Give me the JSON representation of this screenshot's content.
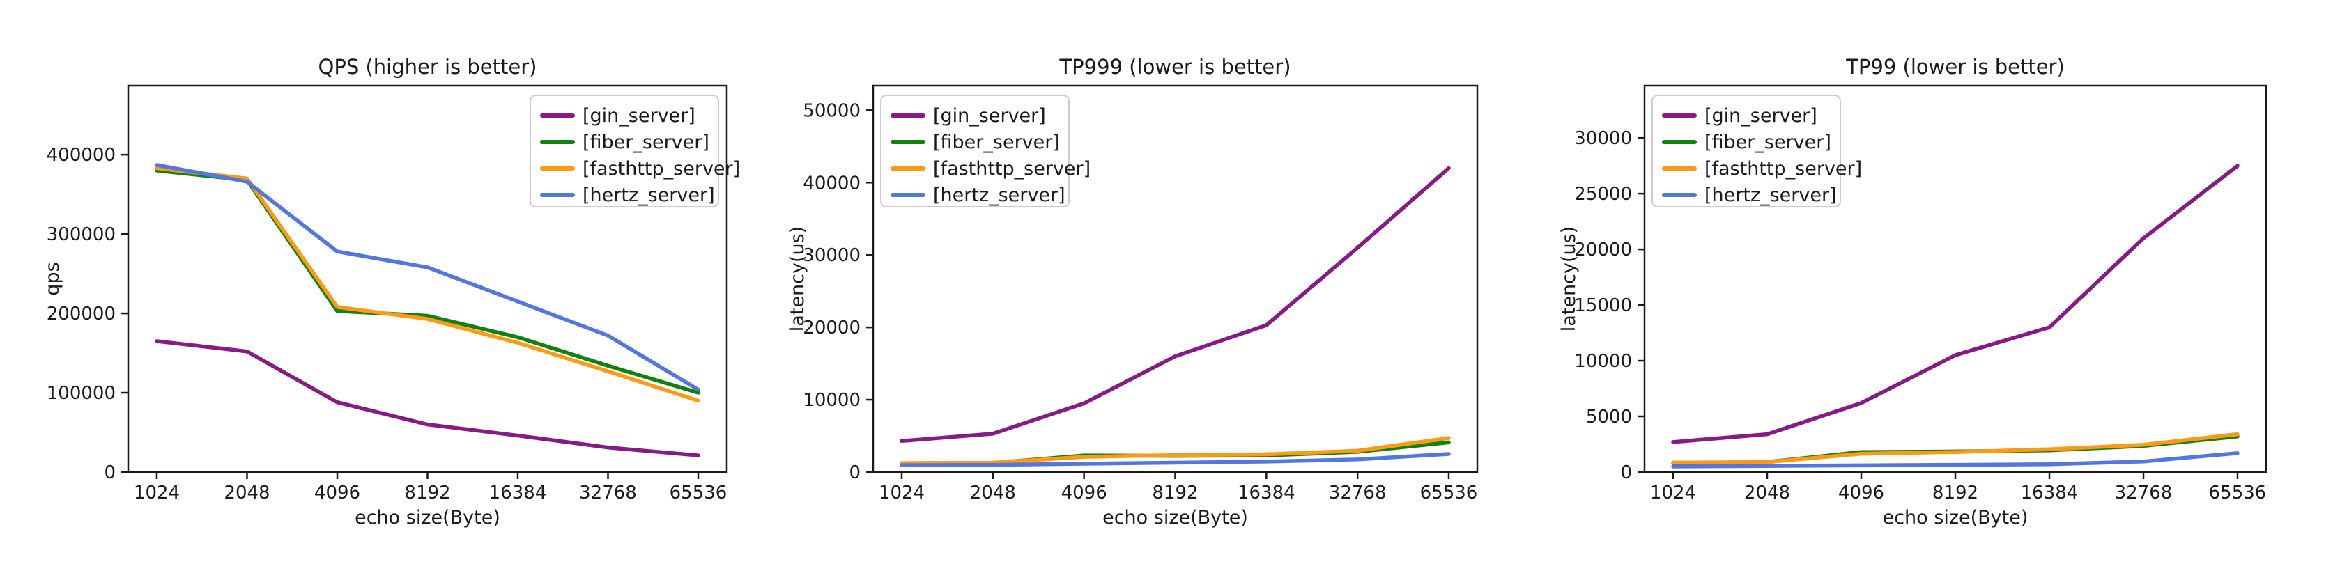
{
  "figure": {
    "background": "#ffffff",
    "description": "Benchmark comparison figure with three line subplots"
  },
  "colors": {
    "gin_server": "#871a87",
    "fiber_server": "#0e830e",
    "fasthttp_server": "#ff9914",
    "hertz_server": "#5277e0",
    "spine": "#1a1a1a",
    "text": "#1a1a1a",
    "legend_border": "#cccccc",
    "legend_fill": "rgba(255,255,255,0.85)"
  },
  "chart_data": [
    {
      "type": "line",
      "title": "QPS (higher is better)",
      "xlabel": "echo size(Byte)",
      "ylabel": "qps",
      "categories": [
        "1024",
        "2048",
        "4096",
        "8192",
        "16384",
        "32768",
        "65536"
      ],
      "ylim": [
        0,
        487000
      ],
      "yticks": [
        0,
        100000,
        200000,
        300000,
        400000
      ],
      "grid": false,
      "legend_position": "upper-right",
      "series": [
        {
          "name": "[gin_server]",
          "color_key": "gin_server",
          "values": [
            165000,
            152000,
            88000,
            60000,
            46000,
            31000,
            21000
          ]
        },
        {
          "name": "[fiber_server]",
          "color_key": "fiber_server",
          "values": [
            380000,
            368000,
            203000,
            197000,
            170000,
            134000,
            100000
          ]
        },
        {
          "name": "[fasthttp_server]",
          "color_key": "fasthttp_server",
          "values": [
            383000,
            370000,
            208000,
            193000,
            163000,
            127000,
            90000
          ]
        },
        {
          "name": "[hertz_server]",
          "color_key": "hertz_server",
          "values": [
            387000,
            366000,
            278000,
            258000,
            215000,
            172000,
            104000
          ]
        }
      ]
    },
    {
      "type": "line",
      "title": "TP999 (lower is better)",
      "xlabel": "echo size(Byte)",
      "ylabel": "latency(us)",
      "categories": [
        "1024",
        "2048",
        "4096",
        "8192",
        "16384",
        "32768",
        "65536"
      ],
      "ylim": [
        0,
        53400
      ],
      "yticks": [
        0,
        10000,
        20000,
        30000,
        40000,
        50000
      ],
      "grid": false,
      "legend_position": "upper-left",
      "series": [
        {
          "name": "[gin_server]",
          "color_key": "gin_server",
          "values": [
            4300,
            5300,
            9500,
            16000,
            20300,
            31000,
            42000
          ]
        },
        {
          "name": "[fiber_server]",
          "color_key": "fiber_server",
          "values": [
            1200,
            1250,
            2300,
            2250,
            2300,
            2800,
            4100
          ]
        },
        {
          "name": "[fasthttp_server]",
          "color_key": "fasthttp_server",
          "values": [
            1250,
            1300,
            2100,
            2350,
            2450,
            2950,
            4700
          ]
        },
        {
          "name": "[hertz_server]",
          "color_key": "hertz_server",
          "values": [
            950,
            1000,
            1150,
            1300,
            1450,
            1750,
            2500
          ]
        }
      ]
    },
    {
      "type": "line",
      "title": "TP99 (lower is better)",
      "xlabel": "echo size(Byte)",
      "ylabel": "latency(us)",
      "categories": [
        "1024",
        "2048",
        "4096",
        "8192",
        "16384",
        "32768",
        "65536"
      ],
      "ylim": [
        0,
        34700
      ],
      "yticks": [
        0,
        5000,
        10000,
        15000,
        20000,
        25000,
        30000
      ],
      "grid": false,
      "legend_position": "upper-left",
      "series": [
        {
          "name": "[gin_server]",
          "color_key": "gin_server",
          "values": [
            2700,
            3400,
            6200,
            10500,
            13000,
            21000,
            27500
          ]
        },
        {
          "name": "[fiber_server]",
          "color_key": "fiber_server",
          "values": [
            800,
            900,
            1800,
            1850,
            1950,
            2350,
            3200
          ]
        },
        {
          "name": "[fasthttp_server]",
          "color_key": "fasthttp_server",
          "values": [
            850,
            900,
            1650,
            1800,
            2050,
            2450,
            3400
          ]
        },
        {
          "name": "[hertz_server]",
          "color_key": "hertz_server",
          "values": [
            500,
            550,
            600,
            650,
            700,
            950,
            1700
          ]
        }
      ]
    }
  ]
}
